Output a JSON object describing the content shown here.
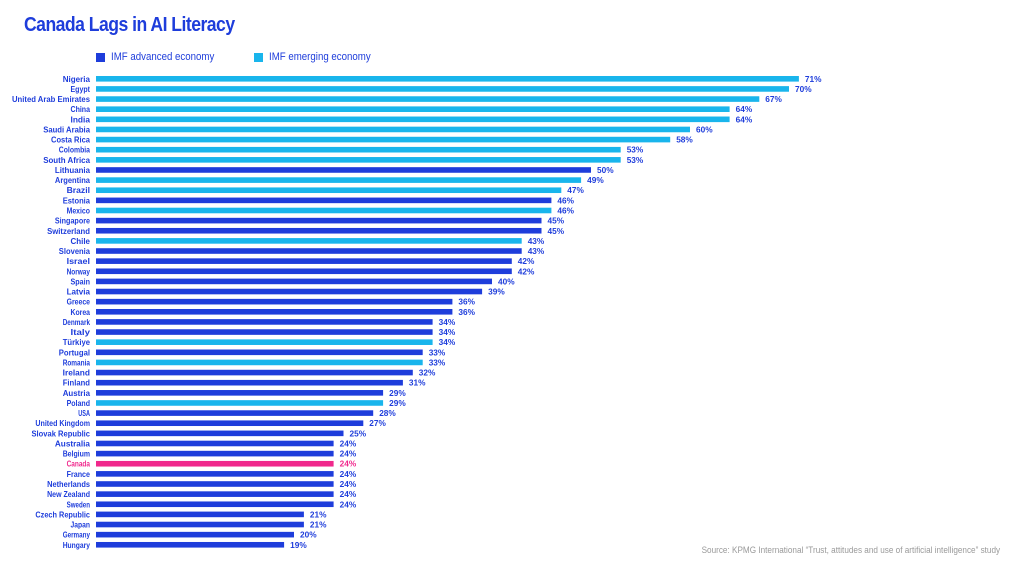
{
  "title": "Canada Lags in AI Literacy",
  "colors": {
    "advanced": "#1E3DDB",
    "emerging": "#19B5EC",
    "highlight": "#F0288C",
    "text": "#1E3DDB"
  },
  "legend": [
    {
      "label": "IMF advanced economy",
      "color": "#1E3DDB"
    },
    {
      "label": "IMF emerging economy",
      "color": "#19B5EC"
    }
  ],
  "source": "Source: KPMG International “Trust, attitudes and use of artificial intelligence” study",
  "chart_data": {
    "type": "bar",
    "orientation": "horizontal",
    "title": "Canada Lags in AI Literacy",
    "xlim": [
      0,
      100
    ],
    "grid": false,
    "legend_placement": "top-left",
    "value_suffix": "%",
    "highlight": "Canada",
    "categories": [
      "Nigeria",
      "Egypt",
      "United Arab Emirates",
      "China",
      "India",
      "Saudi Arabia",
      "Costa Rica",
      "Colombia",
      "South Africa",
      "Lithuania",
      "Argentina",
      "Brazil",
      "Estonia",
      "Mexico",
      "Singapore",
      "Switzerland",
      "Chile",
      "Slovenia",
      "Israel",
      "Norway",
      "Spain",
      "Latvia",
      "Greece",
      "Korea",
      "Denmark",
      "Italy",
      "Türkiye",
      "Portugal",
      "Romania",
      "Ireland",
      "Finland",
      "Austria",
      "Poland",
      "USA",
      "United Kingdom",
      "Slovak Republic",
      "Australia",
      "Belgium",
      "Canada",
      "France",
      "Netherlands",
      "New Zealand",
      "Sweden",
      "Czech Republic",
      "Japan",
      "Germany",
      "Hungary"
    ],
    "values": [
      71,
      70,
      67,
      64,
      64,
      60,
      58,
      53,
      53,
      50,
      49,
      47,
      46,
      46,
      45,
      45,
      43,
      43,
      42,
      42,
      40,
      39,
      36,
      36,
      34,
      34,
      34,
      33,
      33,
      32,
      31,
      29,
      29,
      28,
      27,
      25,
      24,
      24,
      24,
      24,
      24,
      24,
      24,
      21,
      21,
      20,
      19
    ],
    "groups": [
      "emerging",
      "emerging",
      "emerging",
      "emerging",
      "emerging",
      "emerging",
      "emerging",
      "emerging",
      "emerging",
      "advanced",
      "emerging",
      "emerging",
      "advanced",
      "emerging",
      "advanced",
      "advanced",
      "emerging",
      "advanced",
      "advanced",
      "advanced",
      "advanced",
      "advanced",
      "advanced",
      "advanced",
      "advanced",
      "advanced",
      "emerging",
      "advanced",
      "emerging",
      "advanced",
      "advanced",
      "advanced",
      "emerging",
      "advanced",
      "advanced",
      "advanced",
      "advanced",
      "advanced",
      "advanced",
      "advanced",
      "advanced",
      "advanced",
      "advanced",
      "advanced",
      "advanced",
      "advanced",
      "advanced"
    ]
  }
}
